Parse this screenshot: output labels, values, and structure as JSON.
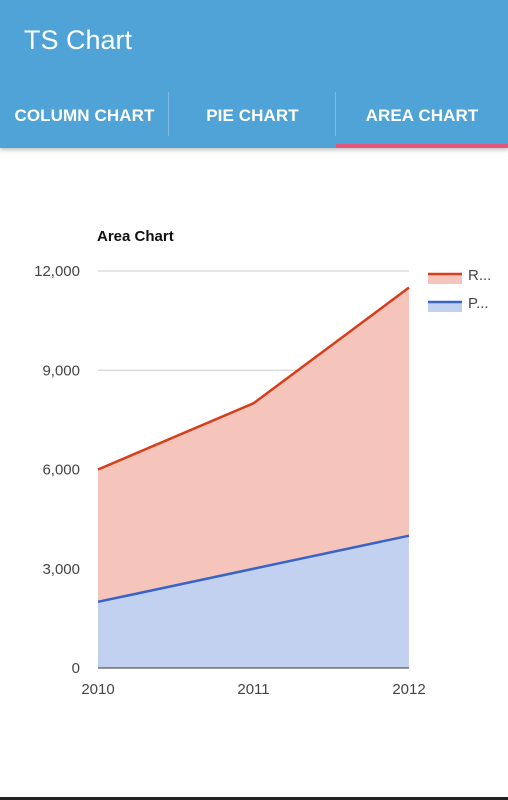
{
  "app": {
    "title": "TS Chart"
  },
  "tabs": [
    {
      "label": "COLUMN CHART",
      "selected": false
    },
    {
      "label": "PIE CHART",
      "selected": false
    },
    {
      "label": "AREA CHART",
      "selected": true
    }
  ],
  "colors": {
    "app_bar": "#4fa3d6",
    "tab_indicator": "#e5567b",
    "series_1_line": "#d63e1c",
    "series_1_fill": "#f5c5bb",
    "series_2_line": "#3863c9",
    "series_2_fill": "#c2d1f0"
  },
  "chart_data": {
    "type": "area",
    "title": "Area Chart",
    "x": [
      "2010",
      "2011",
      "2012"
    ],
    "series": [
      {
        "name": "R...",
        "values": [
          6000,
          8000,
          11500
        ]
      },
      {
        "name": "P...",
        "values": [
          2000,
          3000,
          4000
        ]
      }
    ],
    "ylim": [
      0,
      12000
    ],
    "yticks": [
      "0",
      "3,000",
      "6,000",
      "9,000",
      "12,000"
    ],
    "ytick_values": [
      0,
      3000,
      6000,
      9000,
      12000
    ],
    "grid": true,
    "legend_position": "right"
  }
}
